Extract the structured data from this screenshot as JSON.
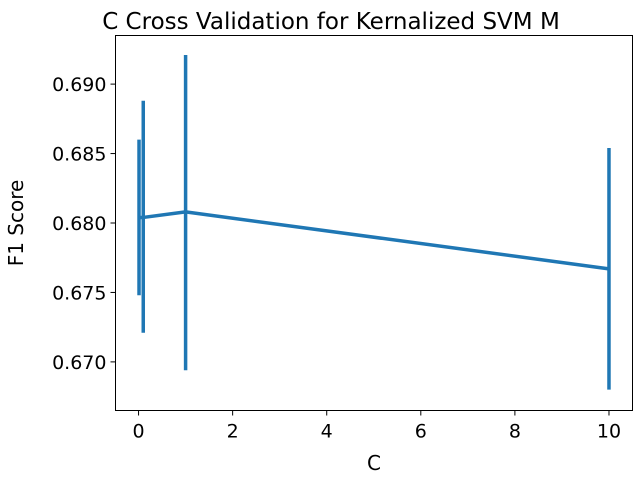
{
  "chart_data": {
    "type": "line",
    "title": "C Cross Validation for Kernalized SVM M",
    "xlabel": "C",
    "ylabel": "F1 Score",
    "x": [
      0.01,
      0.1,
      1,
      10
    ],
    "series": [
      {
        "values": [
          0.6804,
          0.6804,
          0.6808,
          0.6767
        ],
        "err_low": [
          0.6748,
          0.6721,
          0.6694,
          0.668
        ],
        "err_high": [
          0.686,
          0.6888,
          0.6921,
          0.6854
        ],
        "color": "#1f77b4"
      }
    ],
    "xlim": [
      -0.49,
      10.5
    ],
    "ylim": [
      0.6665,
      0.6935
    ],
    "xticks": [
      0,
      2,
      4,
      6,
      8,
      10
    ],
    "xtick_labels": [
      "0",
      "2",
      "4",
      "6",
      "8",
      "10"
    ],
    "yticks": [
      0.67,
      0.675,
      0.68,
      0.685,
      0.69
    ],
    "ytick_labels": [
      "0.670",
      "0.675",
      "0.680",
      "0.685",
      "0.690"
    ],
    "grid": false,
    "legend": "none"
  }
}
